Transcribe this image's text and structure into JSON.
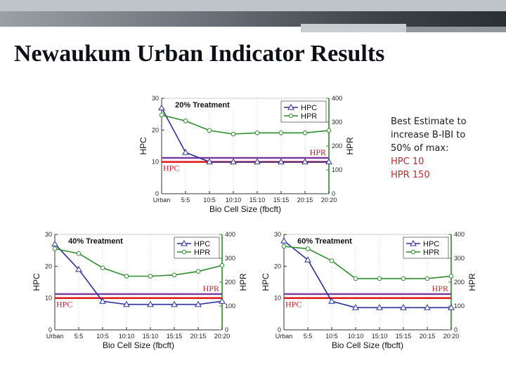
{
  "slide": {
    "title": "Newaukum Urban Indicator Results"
  },
  "note": {
    "line1": "Best Estimate to",
    "line2": "increase B-IBI to",
    "line3": "50% of max:",
    "line4": "HPC 10",
    "line5": "HPR 150"
  },
  "colors": {
    "hpc": "#2b2f9a",
    "hpr": "#2e8b2e",
    "hpc_ref": "#e02020",
    "hpr_ref": "#7a3a9e",
    "note_highlight": "#c0282d"
  },
  "chart_data": [
    {
      "type": "line",
      "title": "20% Treatment",
      "categories": [
        "Urban",
        "5:5",
        "10:5",
        "10:10",
        "15:10",
        "15:15",
        "20:15",
        "20:20"
      ],
      "xlabel": "Bio Cell Size (fbcft)",
      "ylabel_left": "HPC",
      "ylabel_right": "HPR",
      "ylim_left": [
        0,
        30
      ],
      "ylim_right": [
        0,
        400
      ],
      "yticks_left": [
        "0",
        "10",
        "20",
        "30"
      ],
      "yticks_right": [
        "0",
        "100",
        "200",
        "300",
        "400"
      ],
      "series": [
        {
          "name": "HPC",
          "axis": "left",
          "marker": "triangle",
          "values": [
            27,
            13,
            10,
            10,
            10,
            10,
            10,
            10
          ]
        },
        {
          "name": "HPR",
          "axis": "right",
          "marker": "circle",
          "values": [
            330,
            305,
            265,
            250,
            255,
            255,
            255,
            265
          ]
        }
      ],
      "reference_lines": [
        {
          "label": "HPR",
          "axis": "right",
          "value": 150
        },
        {
          "label": "HPC",
          "axis": "left",
          "value": 10
        }
      ],
      "legend": "top-right"
    },
    {
      "type": "line",
      "title": "40% Treatment",
      "categories": [
        "Urban",
        "5:5",
        "10:5",
        "10:10",
        "15:10",
        "15:15",
        "20:15",
        "20:20"
      ],
      "xlabel": "Bio Cell Size (fbcft)",
      "ylabel_left": "HPC",
      "ylabel_right": "HPR",
      "ylim_left": [
        0,
        30
      ],
      "ylim_right": [
        0,
        400
      ],
      "yticks_left": [
        "0",
        "10",
        "20",
        "30"
      ],
      "yticks_right": [
        "0",
        "100",
        "200",
        "300",
        "400"
      ],
      "series": [
        {
          "name": "HPC",
          "axis": "left",
          "marker": "triangle",
          "values": [
            27,
            19,
            9,
            8,
            8,
            8,
            8,
            9
          ]
        },
        {
          "name": "HPR",
          "axis": "right",
          "marker": "circle",
          "values": [
            340,
            320,
            260,
            225,
            225,
            230,
            245,
            270
          ]
        }
      ],
      "reference_lines": [
        {
          "label": "HPR",
          "axis": "right",
          "value": 150
        },
        {
          "label": "HPC",
          "axis": "left",
          "value": 10
        }
      ],
      "legend": "top-right"
    },
    {
      "type": "line",
      "title": "60% Treatment",
      "categories": [
        "Urban",
        "5:5",
        "10:5",
        "10:10",
        "15:10",
        "15:15",
        "20:15",
        "20:20"
      ],
      "xlabel": "Bio Cell Size (fbcft)",
      "ylabel_left": "HPC",
      "ylabel_right": "HPR",
      "ylim_left": [
        0,
        30
      ],
      "ylim_right": [
        0,
        400
      ],
      "yticks_left": [
        "0",
        "10",
        "20",
        "30"
      ],
      "yticks_right": [
        "0",
        "100",
        "200",
        "300",
        "400"
      ],
      "series": [
        {
          "name": "HPC",
          "axis": "left",
          "marker": "triangle",
          "values": [
            28,
            22,
            9,
            7,
            7,
            7,
            7,
            7
          ]
        },
        {
          "name": "HPR",
          "axis": "right",
          "marker": "circle",
          "values": [
            350,
            340,
            290,
            215,
            215,
            215,
            215,
            225
          ]
        }
      ],
      "reference_lines": [
        {
          "label": "HPR",
          "axis": "right",
          "value": 150
        },
        {
          "label": "HPC",
          "axis": "left",
          "value": 10
        }
      ],
      "legend": "top-right"
    }
  ]
}
